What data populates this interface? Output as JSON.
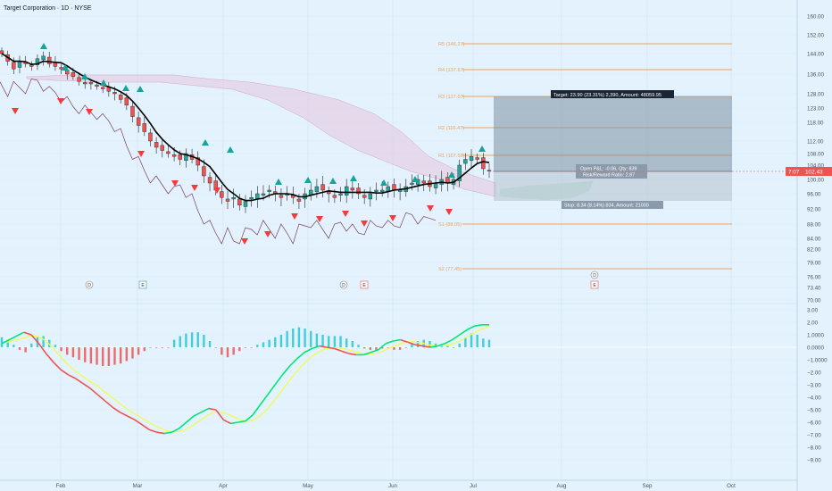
{
  "title": "Target Corporation · 1D · NYSE",
  "colors": {
    "background": "#e3f2fd",
    "up_candle": "#26a69a",
    "down_candle": "#ef5350",
    "ma_line": "#000000",
    "laggard_line": "#7b3f5a",
    "pivot_line": "#f0a35a",
    "cloud": "#e7c6df",
    "position_box": "#7e8fa0",
    "macd_up": "#26c6da",
    "macd_down": "#ef5350",
    "signal_green": "#00e676",
    "signal_yellow": "#eeff41",
    "current_price_bg": "#ef5350"
  },
  "price_axis": {
    "ticks": [
      "160.00",
      "152.00",
      "144.00",
      "136.00",
      "128.00",
      "123.00",
      "118.00",
      "112.00",
      "108.00",
      "104.00",
      "100.00",
      "96.00",
      "92.00",
      "88.00",
      "84.00",
      "82.00",
      "79.00",
      "76.00",
      "73.40",
      "70.00"
    ]
  },
  "osc_axis": {
    "ticks": [
      "3.00",
      "2.00",
      "1.0000",
      "0.0000",
      "−1.0000",
      "−2.00",
      "−3.00",
      "−4.00",
      "−5.00",
      "−6.00",
      "−7.00",
      "−8.00",
      "−9.00"
    ]
  },
  "time_axis": {
    "labels": [
      "Feb",
      "Mar",
      "Apr",
      "May",
      "Jun",
      "Jul",
      "Aug",
      "Sep",
      "Oct"
    ]
  },
  "current_price": {
    "countdown": "7:07",
    "value": "102.43"
  },
  "pivots": [
    {
      "label": "R5 (146.27)",
      "value": 146.27
    },
    {
      "label": "R4 (137.67)",
      "value": 137.67
    },
    {
      "label": "R3 (127.07)",
      "value": 127.07
    },
    {
      "label": "R2 (116.47)",
      "value": 116.47
    },
    {
      "label": "R1 (107.58)",
      "value": 107.58
    },
    {
      "label": "S1 (88.05)",
      "value": 88.05
    },
    {
      "label": "S2 (77.45)",
      "value": 77.45
    }
  ],
  "position": {
    "target_label": "Target: 23.90 (23.31%) 2,390, Amount: 48059.95",
    "open_label": "Open P&L: -0.06, Qty: 839",
    "ratio_label": "Risk/Reward Ratio: 2.87",
    "stop_label": "Stop: 8.34 (8.14%) 834, Amount: 21000"
  },
  "events": [
    {
      "label": "D",
      "kind": "dividend"
    },
    {
      "label": "E",
      "kind": "earnings"
    },
    {
      "label": "D",
      "kind": "dividend"
    },
    {
      "label": "E",
      "kind": "earnings"
    },
    {
      "label": "D",
      "kind": "dividend"
    },
    {
      "label": "E",
      "kind": "earnings"
    }
  ],
  "chart_data": [
    {
      "type": "candlestick",
      "title": "Target Corporation · 1D · NYSE",
      "series": [
        {
          "name": "",
          "kind": "ohlc_close_approx",
          "values": [
            144,
            141,
            138,
            141,
            140,
            139,
            142,
            143,
            140,
            139,
            138,
            136,
            135,
            133,
            132,
            132,
            131,
            130,
            129,
            128,
            126,
            124,
            120,
            117,
            115,
            112,
            110,
            109,
            108,
            107,
            106,
            108,
            106,
            104,
            101,
            99,
            97,
            95,
            94,
            95,
            93,
            94,
            95,
            96,
            96,
            97,
            96,
            95,
            96,
            95,
            94,
            96,
            97,
            98,
            97,
            96,
            95,
            96,
            98,
            97,
            96,
            95,
            96,
            97,
            97,
            98,
            97,
            97,
            98,
            99,
            100,
            99,
            98,
            99,
            100,
            99,
            100,
            104,
            106,
            107,
            106,
            103,
            102.43
          ]
        }
      ],
      "ylim": [
        70,
        160
      ]
    },
    {
      "type": "bar",
      "title": "",
      "series": [
        {
          "name": "",
          "kind": "histogram",
          "values": [
            0.8,
            0.6,
            0.2,
            -0.2,
            -0.4,
            0.3,
            0.8,
            0.9,
            0.6,
            0.2,
            -0.3,
            -0.6,
            -0.8,
            -1.0,
            -1.2,
            -1.3,
            -1.4,
            -1.5,
            -1.5,
            -1.4,
            -1.3,
            -1.1,
            -0.9,
            -0.6,
            -0.3,
            0.0,
            0.0,
            0.0,
            0.0,
            0.6,
            0.9,
            1.1,
            1.2,
            1.2,
            1.0,
            0.5,
            0.0,
            -0.6,
            -0.8,
            -0.6,
            -0.3,
            0.0,
            0.0,
            0.2,
            0.4,
            0.6,
            0.8,
            1.0,
            1.3,
            1.5,
            1.6,
            1.5,
            1.3,
            1.1,
            1.0,
            0.9,
            0.9,
            0.9,
            0.7,
            0.5,
            0.2,
            -0.1,
            -0.2,
            -0.2,
            -0.1,
            0.0,
            -0.2,
            -0.2,
            0.0,
            0.3,
            0.5,
            0.6,
            0.5,
            0.3,
            0.2,
            0.1,
            0.0,
            0.3,
            0.8,
            1.1,
            1.0,
            0.7,
            0.6
          ]
        },
        {
          "name": "",
          "kind": "line",
          "values": [
            0.3,
            0.6,
            0.9,
            1.2,
            1.0,
            0.3,
            -0.5,
            -1.2,
            -1.8,
            -2.2,
            -2.5,
            -2.9,
            -3.3,
            -3.8,
            -4.3,
            -4.8,
            -5.2,
            -5.5,
            -5.8,
            -6.2,
            -6.6,
            -6.8,
            -6.9,
            -6.8,
            -6.5,
            -6.0,
            -5.5,
            -5.2,
            -4.9,
            -5.0,
            -5.8,
            -6.1,
            -6.0,
            -5.9,
            -5.4,
            -4.6,
            -3.8,
            -3.0,
            -2.2,
            -1.5,
            -0.9,
            -0.4,
            -0.1,
            0.1,
            0.0,
            -0.1,
            -0.3,
            -0.5,
            -0.6,
            -0.6,
            -0.4,
            -0.2,
            0.3,
            0.5,
            0.6,
            0.4,
            0.2,
            0.1,
            0.0,
            0.1,
            0.3,
            0.6,
            1.0,
            1.4,
            1.7,
            1.8,
            1.8
          ]
        }
      ],
      "ylim": [
        -9.5,
        3.5
      ]
    }
  ]
}
